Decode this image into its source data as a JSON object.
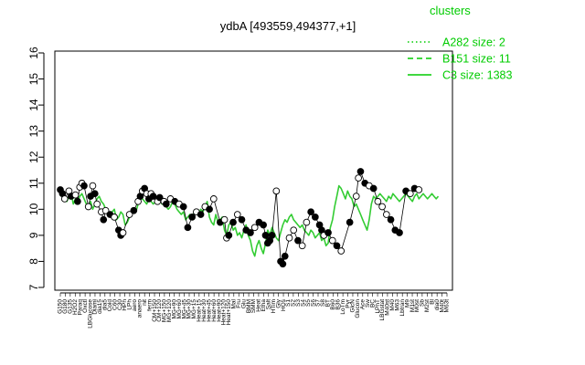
{
  "chart_data": {
    "type": "line",
    "title": "ydbA [493559,494377,+1]",
    "xlabel": "",
    "ylabel": "",
    "ylim": [
      7,
      16
    ],
    "yticks": [
      7,
      8,
      9,
      10,
      11,
      12,
      13,
      14,
      15,
      16
    ],
    "grid": false,
    "legend_position": "top-right",
    "legend_title": "clusters",
    "legend_color": "#00cc00",
    "series_color": "#33cc33",
    "series": [
      {
        "name": "A282 size: 2",
        "style": "dotted"
      },
      {
        "name": "B151 size: 11",
        "style": "dashed"
      },
      {
        "name": "C3 size: 1383",
        "style": "solid"
      }
    ],
    "x_tick_labels": [
      "G150",
      "G180",
      "G135",
      "H2O2",
      "Paraq",
      "Oxctl",
      "LBGlucose",
      "Diami",
      "dia15",
      "dia5",
      "Cold",
      "C60",
      "C30",
      "HPh",
      "LPh",
      "aero",
      "anaero",
      "nit",
      "ferm",
      "CM+150",
      "CM+120",
      "MG+150",
      "MG+120",
      "MG+90",
      "MG+60",
      "MG+45",
      "MG+30",
      "MG+15",
      "Heat+15",
      "Heat+30",
      "Heat+45",
      "Heat+60",
      "Heat+90",
      "Heat+120",
      "Heat+150",
      "Mal",
      "Fru",
      "Glu",
      "BMM",
      "SMM",
      "Heat",
      "Etha",
      "Salt",
      "HTim",
      "Gly",
      "HOs",
      "S1",
      "S2",
      "S3",
      "S4",
      "S5",
      "S6",
      "S7",
      "S8",
      "BT",
      "B60",
      "B36",
      "LoTm",
      "Pyr",
      "GlcN",
      "Glucon",
      "Ace",
      "Sw",
      "BC",
      "LPhT",
      "LBGstat",
      "M40st",
      "M40",
      "M63",
      "Lbtran",
      "M9",
      "M1st",
      "M0st",
      "Sb",
      "M2st",
      "Bl",
      "dia0",
      "M40t",
      "M63t"
    ],
    "x": [
      1,
      2,
      3,
      4,
      5,
      6,
      7,
      8,
      9,
      10,
      11,
      12,
      13,
      14,
      15,
      16,
      17,
      18,
      19,
      20,
      21,
      22,
      23,
      24,
      25,
      26,
      27,
      28,
      29,
      30,
      31,
      32,
      33,
      34,
      35,
      36,
      37,
      38,
      39,
      40,
      41,
      42,
      43,
      44,
      45,
      46,
      47,
      48,
      49,
      50,
      51,
      52,
      53,
      54,
      55,
      56,
      57,
      58,
      59,
      60,
      61,
      62,
      63,
      64,
      65,
      66,
      67,
      68,
      69,
      70,
      71,
      72,
      73,
      74,
      75,
      76,
      77,
      78,
      79,
      80,
      81,
      82,
      83,
      84,
      85,
      86,
      87,
      88,
      89,
      90,
      91,
      92,
      93,
      94,
      95,
      96,
      97,
      98,
      99,
      100,
      101,
      102,
      103,
      104,
      105,
      106,
      107,
      108,
      109,
      110,
      111,
      112,
      113,
      114,
      115,
      116,
      117,
      118,
      119,
      120,
      121,
      122,
      123,
      124,
      125,
      126,
      127,
      128,
      129,
      130,
      131,
      132,
      133,
      134,
      135,
      136,
      137,
      138,
      139,
      140,
      141,
      142,
      143,
      144,
      145,
      146,
      147,
      148,
      149,
      150,
      151,
      152,
      153,
      154,
      155,
      156,
      157,
      158,
      159,
      160,
      161,
      162,
      163,
      164,
      165,
      166,
      167,
      168,
      169,
      170,
      171,
      172,
      173,
      174,
      175,
      176,
      177,
      178,
      179,
      180
    ],
    "line_values": [
      10.5,
      10.6,
      10.4,
      10.3,
      10.5,
      10.6,
      10.2,
      10.4,
      10.3,
      10.5,
      10.6,
      10.4,
      10.2,
      10.1,
      10.3,
      10.0,
      10.2,
      10.4,
      10.5,
      10.3,
      10.2,
      10.0,
      9.8,
      9.9,
      9.9,
      10.0,
      9.6,
      9.7,
      9.9,
      9.8,
      9.4,
      9.5,
      9.7,
      9.9,
      10.0,
      9.9,
      10.2,
      10.4,
      10.4,
      10.3,
      10.2,
      10.4,
      10.3,
      10.2,
      10.3,
      10.3,
      10.4,
      10.2,
      10.2,
      10.1,
      10.0,
      10.1,
      10.3,
      10.2,
      10.0,
      9.9,
      9.8,
      9.9,
      9.6,
      9.7,
      9.8,
      9.6,
      9.9,
      10.0,
      9.8,
      10.0,
      9.9,
      10.1,
      10.3,
      9.7,
      9.5,
      9.4,
      9.8,
      9.5,
      9.6,
      9.7,
      9.2,
      9.0,
      9.4,
      9.5,
      9.2,
      9.3,
      9.0,
      9.1,
      8.9,
      9.2,
      9.4,
      9.0,
      8.8,
      8.4,
      8.2,
      8.6,
      8.8,
      8.5,
      8.3,
      8.7,
      9.2,
      9.0,
      9.3,
      9.1,
      8.9,
      8.8,
      9.1,
      9.4,
      9.6,
      9.5,
      9.7,
      9.8,
      9.6,
      9.5,
      9.4,
      9.3,
      9.4,
      9.2,
      9.1,
      9.0,
      9.2,
      9.1,
      8.9,
      9.0,
      9.1,
      8.8,
      8.9,
      8.6,
      8.7,
      9.3,
      9.6,
      10.1,
      10.5,
      10.9,
      10.8,
      10.6,
      10.4,
      10.7,
      10.5,
      10.4,
      10.1,
      10.2,
      10.0,
      9.8,
      9.6,
      9.4,
      9.2,
      9.6,
      10.2,
      10.5,
      10.4,
      10.5,
      10.6,
      10.5,
      10.4,
      10.3,
      10.5,
      10.4,
      10.6,
      10.5,
      10.4,
      10.3,
      10.4,
      10.5,
      10.6,
      10.5,
      10.4,
      10.3,
      10.5,
      10.6,
      10.4,
      10.5,
      10.6,
      10.5,
      10.4,
      10.5,
      10.6,
      10.5,
      10.4,
      10.5
    ],
    "points": [
      {
        "x": 1,
        "y": 10.75,
        "filled": true
      },
      {
        "x": 2,
        "y": 10.6,
        "filled": true
      },
      {
        "x": 3,
        "y": 10.4,
        "filled": false
      },
      {
        "x": 5,
        "y": 10.7,
        "filled": false
      },
      {
        "x": 6,
        "y": 10.5,
        "filled": true
      },
      {
        "x": 8,
        "y": 10.55,
        "filled": false
      },
      {
        "x": 9,
        "y": 10.3,
        "filled": true
      },
      {
        "x": 10,
        "y": 10.85,
        "filled": false
      },
      {
        "x": 11,
        "y": 11.0,
        "filled": false
      },
      {
        "x": 12,
        "y": 10.9,
        "filled": true
      },
      {
        "x": 14,
        "y": 10.1,
        "filled": false
      },
      {
        "x": 15,
        "y": 10.5,
        "filled": true
      },
      {
        "x": 16,
        "y": 10.9,
        "filled": false
      },
      {
        "x": 17,
        "y": 10.6,
        "filled": true
      },
      {
        "x": 18,
        "y": 10.2,
        "filled": false
      },
      {
        "x": 20,
        "y": 9.9,
        "filled": false
      },
      {
        "x": 21,
        "y": 9.6,
        "filled": true
      },
      {
        "x": 22,
        "y": 9.95,
        "filled": false
      },
      {
        "x": 24,
        "y": 9.8,
        "filled": true
      },
      {
        "x": 26,
        "y": 9.7,
        "filled": false
      },
      {
        "x": 28,
        "y": 9.2,
        "filled": true
      },
      {
        "x": 29,
        "y": 9.0,
        "filled": true
      },
      {
        "x": 30,
        "y": 9.1,
        "filled": false
      },
      {
        "x": 33,
        "y": 9.8,
        "filled": false
      },
      {
        "x": 35,
        "y": 9.95,
        "filled": true
      },
      {
        "x": 37,
        "y": 10.3,
        "filled": false
      },
      {
        "x": 38,
        "y": 10.5,
        "filled": true
      },
      {
        "x": 39,
        "y": 10.7,
        "filled": false
      },
      {
        "x": 40,
        "y": 10.8,
        "filled": true
      },
      {
        "x": 41,
        "y": 10.6,
        "filled": false
      },
      {
        "x": 42,
        "y": 10.4,
        "filled": true
      },
      {
        "x": 43,
        "y": 10.6,
        "filled": false
      },
      {
        "x": 44,
        "y": 10.5,
        "filled": true
      },
      {
        "x": 46,
        "y": 10.3,
        "filled": false
      },
      {
        "x": 47,
        "y": 10.45,
        "filled": true
      },
      {
        "x": 49,
        "y": 10.3,
        "filled": false
      },
      {
        "x": 50,
        "y": 10.2,
        "filled": true
      },
      {
        "x": 52,
        "y": 10.4,
        "filled": false
      },
      {
        "x": 54,
        "y": 10.3,
        "filled": true
      },
      {
        "x": 56,
        "y": 10.2,
        "filled": false
      },
      {
        "x": 58,
        "y": 10.1,
        "filled": true
      },
      {
        "x": 60,
        "y": 9.3,
        "filled": true
      },
      {
        "x": 62,
        "y": 9.7,
        "filled": true
      },
      {
        "x": 64,
        "y": 9.9,
        "filled": false
      },
      {
        "x": 66,
        "y": 9.8,
        "filled": true
      },
      {
        "x": 68,
        "y": 10.1,
        "filled": false
      },
      {
        "x": 70,
        "y": 10.0,
        "filled": true
      },
      {
        "x": 72,
        "y": 10.4,
        "filled": false
      },
      {
        "x": 75,
        "y": 9.5,
        "filled": true
      },
      {
        "x": 77,
        "y": 9.6,
        "filled": false
      },
      {
        "x": 78,
        "y": 8.9,
        "filled": false
      },
      {
        "x": 79,
        "y": 9.0,
        "filled": true
      },
      {
        "x": 81,
        "y": 9.5,
        "filled": true
      },
      {
        "x": 83,
        "y": 9.8,
        "filled": false
      },
      {
        "x": 85,
        "y": 9.6,
        "filled": true
      },
      {
        "x": 87,
        "y": 9.2,
        "filled": true
      },
      {
        "x": 89,
        "y": 9.1,
        "filled": true
      },
      {
        "x": 91,
        "y": 9.3,
        "filled": false
      },
      {
        "x": 93,
        "y": 9.5,
        "filled": true
      },
      {
        "x": 95,
        "y": 9.4,
        "filled": true
      },
      {
        "x": 96,
        "y": 9.0,
        "filled": true
      },
      {
        "x": 97,
        "y": 8.7,
        "filled": true
      },
      {
        "x": 98,
        "y": 8.8,
        "filled": true
      },
      {
        "x": 99,
        "y": 9.0,
        "filled": true
      },
      {
        "x": 101,
        "y": 10.7,
        "filled": false
      },
      {
        "x": 103,
        "y": 8.0,
        "filled": true
      },
      {
        "x": 104,
        "y": 7.9,
        "filled": true
      },
      {
        "x": 105,
        "y": 8.2,
        "filled": true
      },
      {
        "x": 107,
        "y": 8.9,
        "filled": false
      },
      {
        "x": 109,
        "y": 9.2,
        "filled": false
      },
      {
        "x": 111,
        "y": 8.8,
        "filled": true
      },
      {
        "x": 113,
        "y": 8.6,
        "filled": false
      },
      {
        "x": 115,
        "y": 9.5,
        "filled": false
      },
      {
        "x": 117,
        "y": 9.9,
        "filled": true
      },
      {
        "x": 119,
        "y": 9.7,
        "filled": true
      },
      {
        "x": 121,
        "y": 9.4,
        "filled": true
      },
      {
        "x": 122,
        "y": 9.2,
        "filled": true
      },
      {
        "x": 123,
        "y": 9.0,
        "filled": false
      },
      {
        "x": 125,
        "y": 9.1,
        "filled": true
      },
      {
        "x": 127,
        "y": 8.8,
        "filled": false
      },
      {
        "x": 129,
        "y": 8.6,
        "filled": true
      },
      {
        "x": 131,
        "y": 8.4,
        "filled": false
      },
      {
        "x": 135,
        "y": 9.5,
        "filled": true
      },
      {
        "x": 138,
        "y": 10.5,
        "filled": false
      },
      {
        "x": 139,
        "y": 11.2,
        "filled": false
      },
      {
        "x": 140,
        "y": 11.45,
        "filled": true
      },
      {
        "x": 142,
        "y": 11.0,
        "filled": true
      },
      {
        "x": 144,
        "y": 10.9,
        "filled": false
      },
      {
        "x": 146,
        "y": 10.8,
        "filled": true
      },
      {
        "x": 148,
        "y": 10.3,
        "filled": false
      },
      {
        "x": 150,
        "y": 10.1,
        "filled": false
      },
      {
        "x": 152,
        "y": 9.8,
        "filled": false
      },
      {
        "x": 154,
        "y": 9.6,
        "filled": true
      },
      {
        "x": 156,
        "y": 9.2,
        "filled": true
      },
      {
        "x": 158,
        "y": 9.1,
        "filled": true
      },
      {
        "x": 161,
        "y": 10.7,
        "filled": true
      },
      {
        "x": 163,
        "y": 10.6,
        "filled": false
      },
      {
        "x": 165,
        "y": 10.8,
        "filled": true
      },
      {
        "x": 167,
        "y": 10.75,
        "filled": false
      }
    ]
  }
}
